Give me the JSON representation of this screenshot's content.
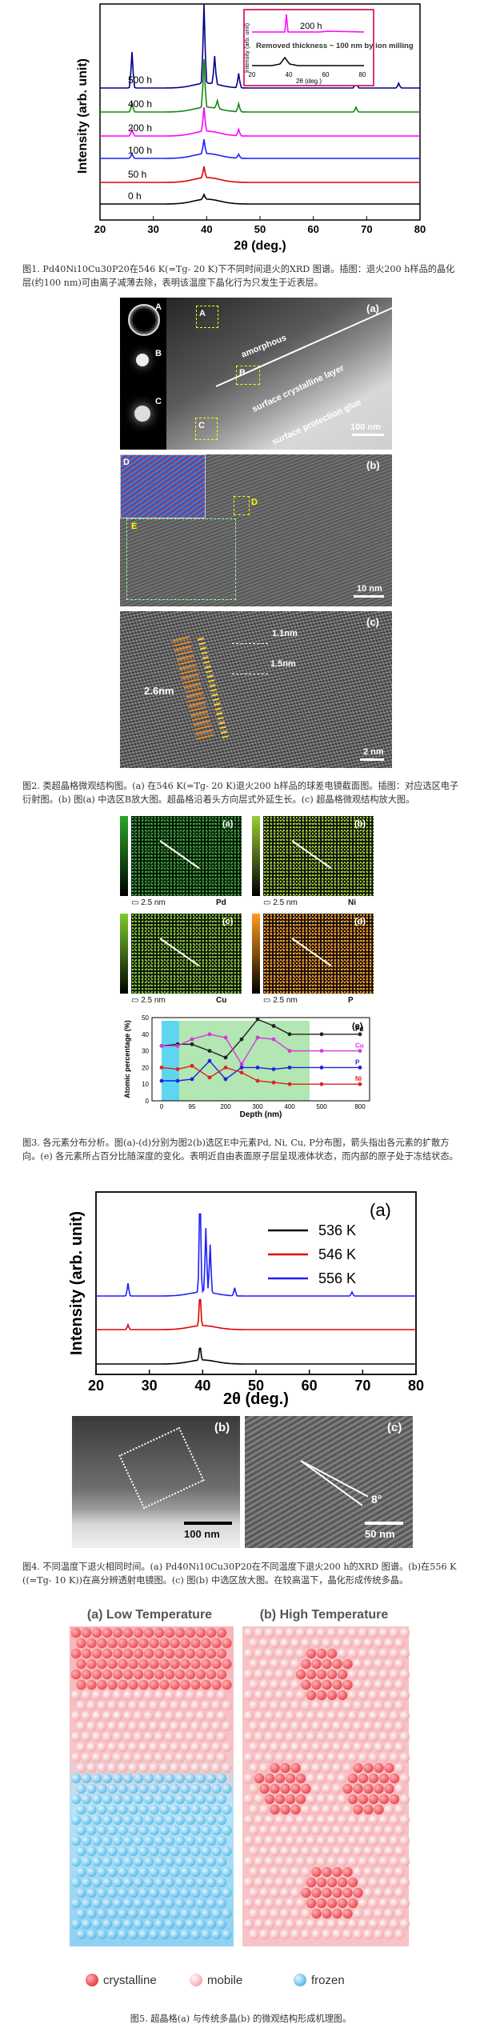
{
  "figure1": {
    "chart_data": {
      "type": "line",
      "xlabel": "2θ (deg.)",
      "ylabel": "Intensity (arb. unit)",
      "xlim": [
        20,
        80
      ],
      "xticks": [
        "20",
        "30",
        "40",
        "50",
        "60",
        "70",
        "80"
      ],
      "series": [
        {
          "name": "0 h",
          "color": "#000000"
        },
        {
          "name": "50 h",
          "color": "#e00000"
        },
        {
          "name": "100 h",
          "color": "#1f1fff"
        },
        {
          "name": "200 h",
          "color": "#ff00ff"
        },
        {
          "name": "400 h",
          "color": "#118811"
        },
        {
          "name": "500 h",
          "color": "#000088"
        }
      ],
      "inset": {
        "label_top": "200 h",
        "annotation": "Removed thickness ~ 100 nm by ion milling",
        "ylabel": "Intensity (arb. unit)",
        "xlabel": "2θ (deg.)",
        "xticks": [
          "20",
          "40",
          "60",
          "80"
        ]
      }
    },
    "caption": "图1. Pd40Ni10Cu30P20在546 K(=Tg- 20 K)下不同时间退火的XRD 图谱。插图：退火200 h样品的晶化层(约100 nm)可由离子减薄去除，表明该温度下晶化行为只发生于近表层。"
  },
  "figure2": {
    "a": {
      "label": "(a)",
      "amorphous": "amorphous",
      "layer": "surface crystalline layer",
      "glue": "surface protection glue",
      "scale": "100 nm",
      "boxes": [
        "A",
        "B",
        "C"
      ]
    },
    "b": {
      "label": "(b)",
      "scale": "10 nm",
      "boxes": [
        "D",
        "E"
      ]
    },
    "c": {
      "label": "(c)",
      "scale": "2 nm",
      "d1": "1.1nm",
      "d2": "1.5nm",
      "d3": "2.6nm"
    },
    "caption": "图2. 类超晶格微观结构图。(a) 在546 K(=Tg- 20 K)退火200 h样品的球差电镜截面图。插图：对应选区电子衍射图。(b) 图(a) 中选区B放大图。超晶格沿着头方向层式外延生长。(c) 超晶格微观结构放大图。"
  },
  "figure3": {
    "maps": [
      {
        "label": "(a)",
        "element": "Pd",
        "scale": "2.5 nm",
        "color": "#2aa52a"
      },
      {
        "label": "(b)",
        "element": "Ni",
        "scale": "2.5 nm",
        "color": "#9acd32"
      },
      {
        "label": "(c)",
        "element": "Cu",
        "scale": "2.5 nm",
        "color": "#7ccc2a"
      },
      {
        "label": "(d)",
        "element": "P",
        "scale": "2.5 nm",
        "color": "#ff9a1f"
      }
    ],
    "chart_data": {
      "type": "line",
      "label": "(e)",
      "xlabel": "Depth (nm)",
      "ylabel": "Atomic percentage (%)",
      "ylim": [
        0,
        50
      ],
      "yticks": [
        0,
        10,
        20,
        30,
        40,
        50
      ],
      "xtick_labels": [
        "0",
        "95",
        "200",
        "300",
        "400",
        "500",
        "800"
      ],
      "x": [
        0,
        50,
        95,
        150,
        200,
        250,
        300,
        350,
        400,
        500,
        800
      ],
      "series": [
        {
          "name": "Pd",
          "color": "#222222",
          "values": [
            33,
            34,
            34,
            30,
            26,
            37,
            49,
            45,
            40,
            40,
            40
          ]
        },
        {
          "name": "Cu",
          "color": "#dd33dd",
          "values": [
            33,
            33,
            37,
            40,
            38,
            22,
            38,
            37,
            30,
            30,
            30
          ]
        },
        {
          "name": "P",
          "color": "#2222dd",
          "values": [
            12,
            12,
            13,
            24,
            13,
            20,
            20,
            19,
            20,
            20,
            20
          ]
        },
        {
          "name": "Ni",
          "color": "#dd2222",
          "values": [
            20,
            19,
            21,
            14,
            20,
            17,
            12,
            11,
            10,
            10,
            10
          ]
        }
      ]
    },
    "caption": "图3. 各元素分布分析。图(a)-(d)分别为图2(b)选区E中元素Pd, Ni, Cu, P分布图，箭头指出各元素的扩散方向。(e) 各元素所占百分比随深度的变化。表明近自由表面原子层呈现液体状态，而内部的原子处于冻结状态。"
  },
  "figure4": {
    "chart_data": {
      "type": "line",
      "label": "(a)",
      "xlabel": "2θ (deg.)",
      "ylabel": "Intensity (arb. unit)",
      "xlim": [
        20,
        80
      ],
      "xticks": [
        "20",
        "30",
        "40",
        "50",
        "60",
        "70",
        "80"
      ],
      "series": [
        {
          "name": "536 K",
          "color": "#000000"
        },
        {
          "name": "546 K",
          "color": "#e00000"
        },
        {
          "name": "556 K",
          "color": "#1f1fff"
        }
      ]
    },
    "b": {
      "label": "(b)",
      "scale": "100 nm"
    },
    "c": {
      "label": "(c)",
      "scale": "50 nm",
      "angle": "8°"
    },
    "caption": "图4. 不同温度下退火相同时间。(a) Pd40Ni10Cu30P20在不同温度下退火200 h的XRD 图谱。(b)在556 K ((=Tg- 10 K))在高分辨透射电镜图。(c) 图(b) 中选区放大图。在较高温下，晶化形成传统多晶。"
  },
  "figure5": {
    "a": {
      "label": "(a) Low Temperature"
    },
    "b": {
      "label": "(b) High Temperature"
    },
    "legend": [
      {
        "name": "crystalline",
        "color": "#e8323c"
      },
      {
        "name": "mobile",
        "color": "#f4a3a8"
      },
      {
        "name": "frozen",
        "color": "#4cb6e8"
      }
    ],
    "caption": "图5. 超晶格(a) 与传统多晶(b) 的微观结构形成机理图。"
  }
}
